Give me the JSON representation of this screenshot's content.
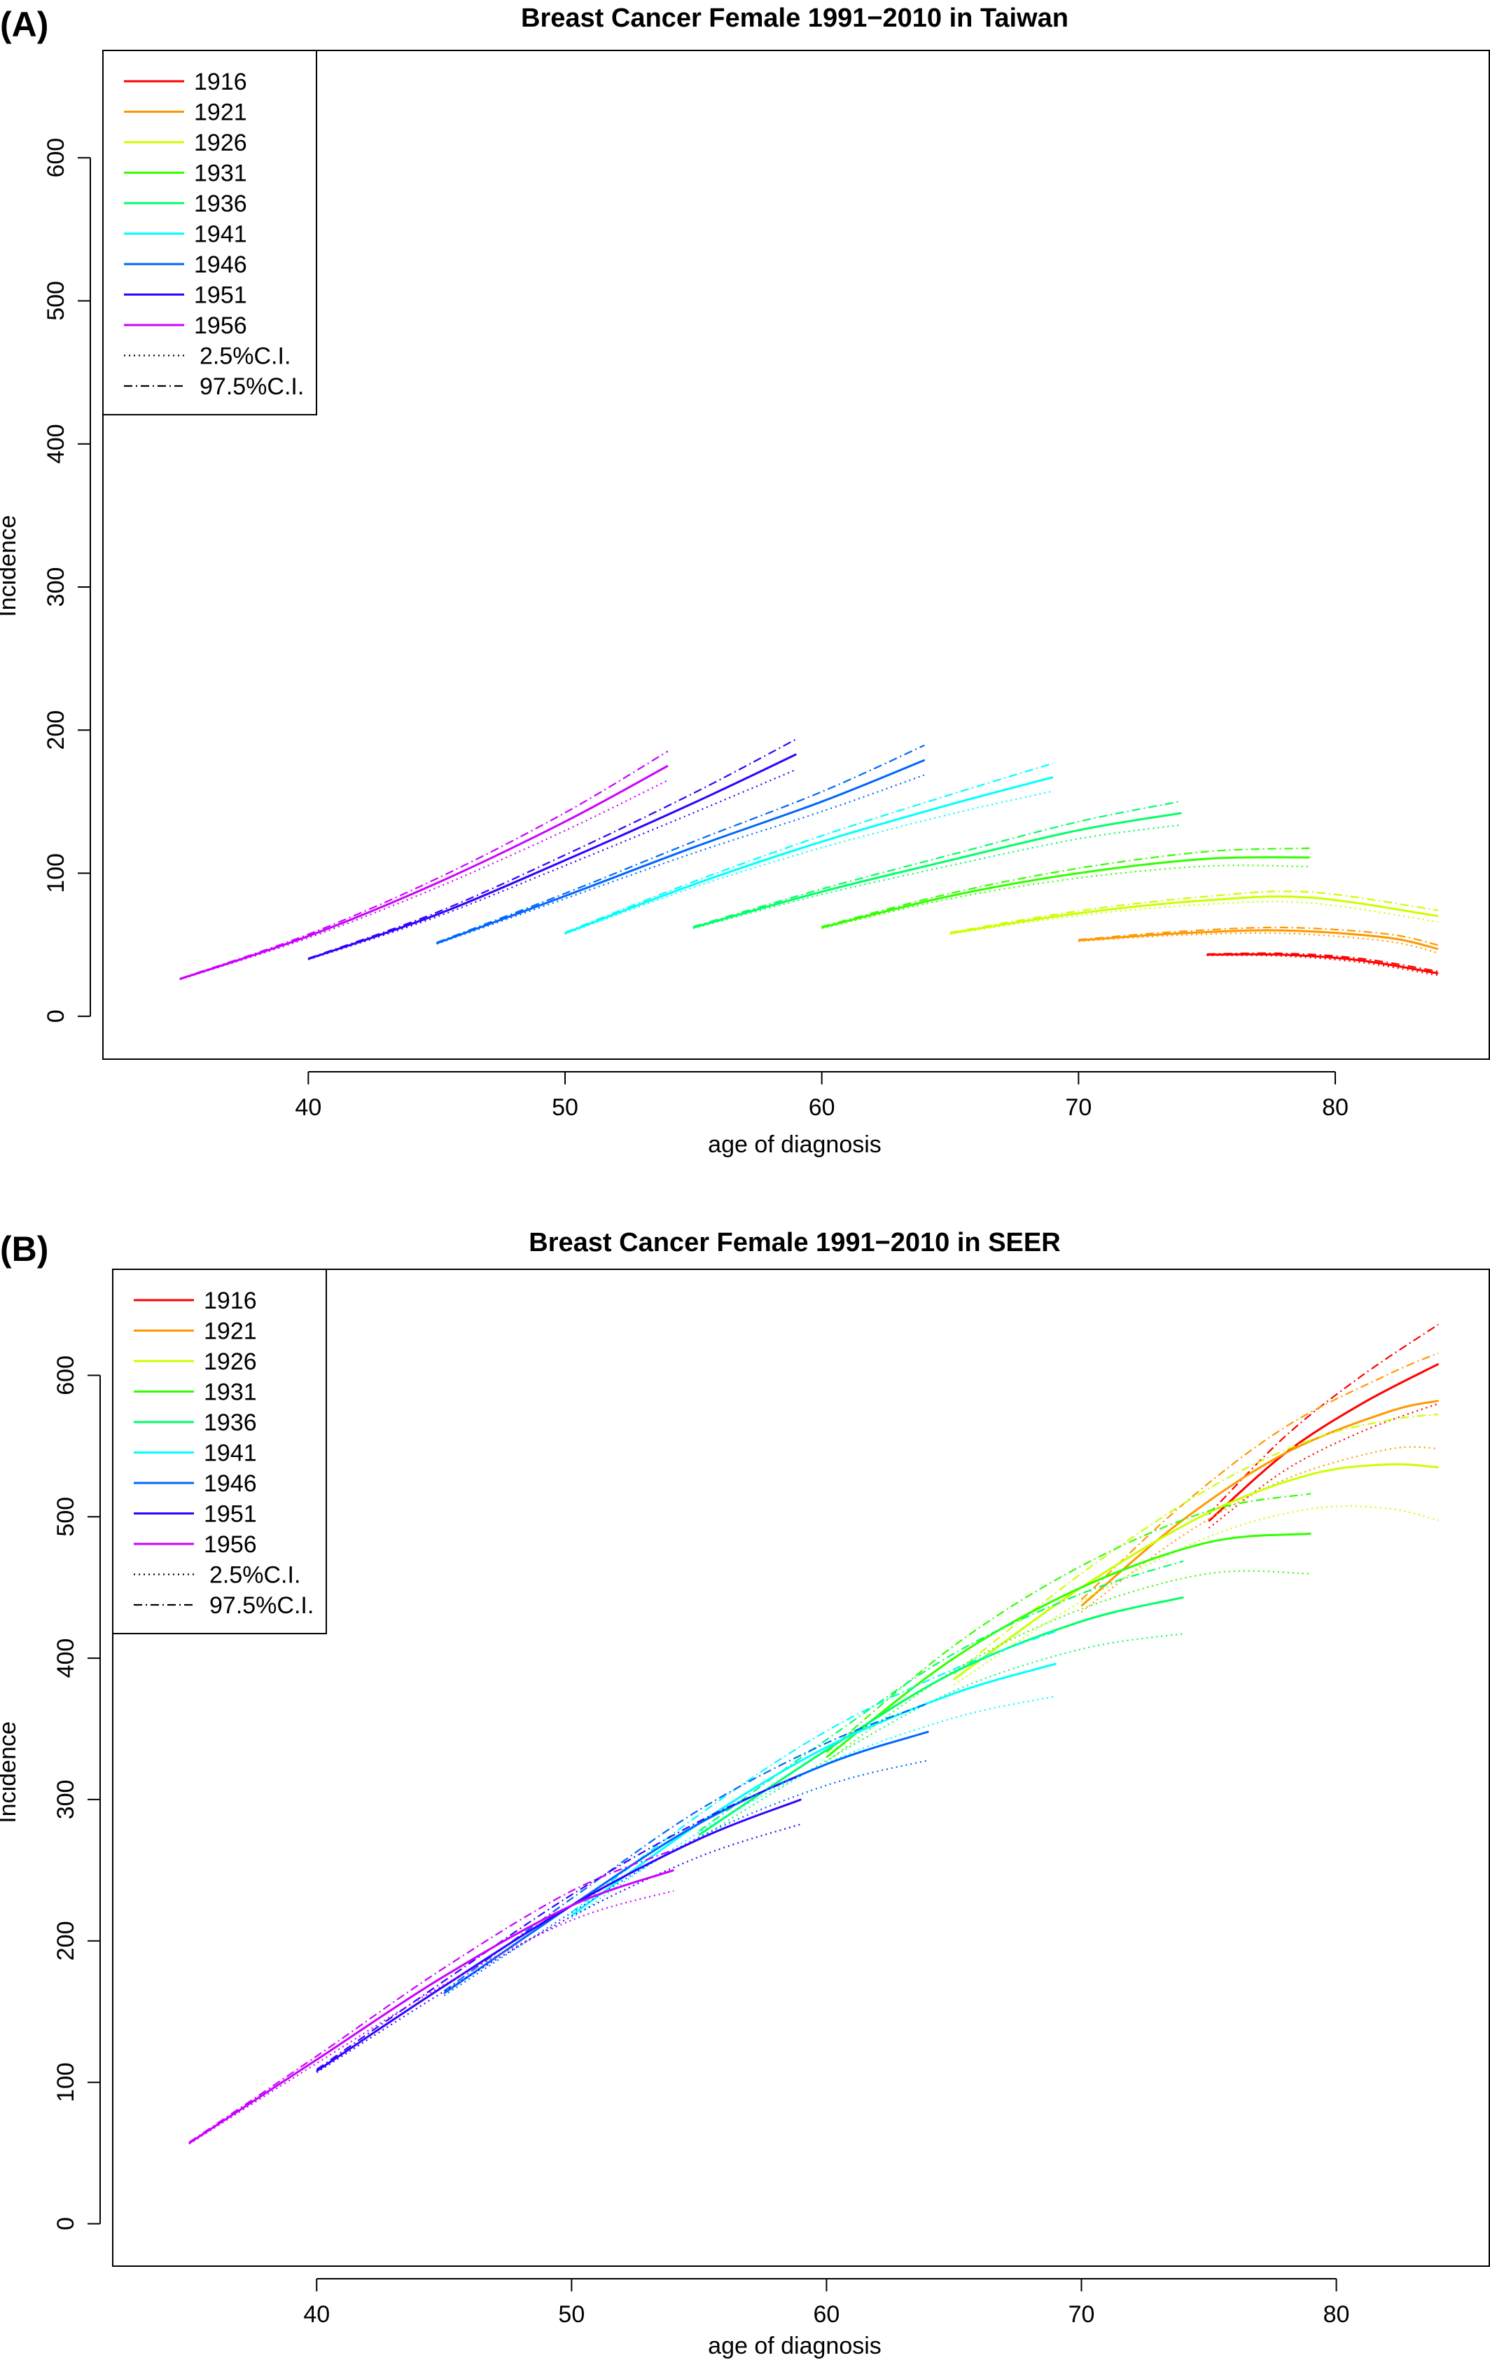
{
  "figure": {
    "panels": [
      {
        "panel_label": "(A)",
        "title": "Breast Cancer Female 1991−2010 in Taiwan",
        "xlabel": "age of diagnosis",
        "ylabel": "Incidence",
        "x_ticks": [
          "40",
          "50",
          "60",
          "70",
          "80"
        ],
        "y_ticks": [
          "0",
          "100",
          "200",
          "300",
          "400",
          "500",
          "600"
        ],
        "legend": {
          "entries": [
            "1916",
            "1921",
            "1926",
            "1931",
            "1936",
            "1941",
            "1946",
            "1951",
            "1956"
          ],
          "ci_entries": [
            "2.5%C.I.",
            "97.5%C.I."
          ]
        }
      },
      {
        "panel_label": "(B)",
        "title": "Breast Cancer Female 1991−2010 in SEER",
        "xlabel": "age of diagnosis",
        "ylabel": "Incidence",
        "x_ticks": [
          "40",
          "50",
          "60",
          "70",
          "80"
        ],
        "y_ticks": [
          "0",
          "100",
          "200",
          "300",
          "400",
          "500",
          "600"
        ],
        "legend": {
          "entries": [
            "1916",
            "1921",
            "1926",
            "1931",
            "1936",
            "1941",
            "1946",
            "1951",
            "1956"
          ],
          "ci_entries": [
            "2.5%C.I.",
            "97.5%C.I."
          ]
        }
      }
    ]
  },
  "chart_data": [
    {
      "type": "line",
      "title": "Breast Cancer Female 1991−2010 in Taiwan",
      "xlabel": "age of diagnosis",
      "ylabel": "Incidence",
      "xlim": [
        32,
        86
      ],
      "ylim": [
        -30,
        675
      ],
      "xticks": [
        40,
        50,
        60,
        70,
        80
      ],
      "yticks": [
        0,
        100,
        200,
        300,
        400,
        500,
        600
      ],
      "grid": false,
      "legend_position": "top-left",
      "series": [
        {
          "name": "1916",
          "color": "#ff0000",
          "x": [
            75,
            78,
            81,
            84
          ],
          "y": [
            43,
            43,
            39,
            30
          ]
        },
        {
          "name": "1921",
          "color": "#ff9900",
          "x": [
            70,
            74,
            78,
            82,
            84
          ],
          "y": [
            53,
            58,
            60,
            55,
            47
          ]
        },
        {
          "name": "1926",
          "color": "#ccff00",
          "x": [
            65,
            70,
            75,
            79,
            84
          ],
          "y": [
            58,
            72,
            81,
            83,
            70
          ]
        },
        {
          "name": "1931",
          "color": "#33ff00",
          "x": [
            60,
            65,
            70,
            75,
            79
          ],
          "y": [
            62,
            84,
            100,
            110,
            111
          ]
        },
        {
          "name": "1936",
          "color": "#00ff66",
          "x": [
            55,
            60,
            65,
            70,
            74
          ],
          "y": [
            62,
            87,
            109,
            130,
            142
          ]
        },
        {
          "name": "1941",
          "color": "#00ffff",
          "x": [
            50,
            55,
            60,
            65,
            69
          ],
          "y": [
            58,
            92,
            122,
            148,
            167
          ]
        },
        {
          "name": "1946",
          "color": "#0066ff",
          "x": [
            45,
            50,
            55,
            60,
            64
          ],
          "y": [
            51,
            84,
            118,
            150,
            179
          ]
        },
        {
          "name": "1951",
          "color": "#3300ff",
          "x": [
            40,
            45,
            50,
            55,
            59
          ],
          "y": [
            40,
            71,
            109,
            149,
            183
          ]
        },
        {
          "name": "1956",
          "color": "#cc00ff",
          "x": [
            35,
            40,
            45,
            50,
            54
          ],
          "y": [
            26,
            56,
            93,
            136,
            175
          ]
        }
      ],
      "ci": {
        "lower": "2.5%C.I.",
        "upper": "97.5%C.I."
      }
    },
    {
      "type": "line",
      "title": "Breast Cancer Female 1991−2010 in SEER",
      "xlabel": "age of diagnosis",
      "ylabel": "Incidence",
      "xlim": [
        32,
        86
      ],
      "ylim": [
        -30,
        675
      ],
      "xticks": [
        40,
        50,
        60,
        70,
        80
      ],
      "yticks": [
        0,
        100,
        200,
        300,
        400,
        500,
        600
      ],
      "grid": false,
      "legend_position": "top-left",
      "series": [
        {
          "name": "1916",
          "color": "#ff0000",
          "x": [
            75,
            78,
            81,
            84
          ],
          "y": [
            497,
            545,
            580,
            608
          ]
        },
        {
          "name": "1921",
          "color": "#ff9900",
          "x": [
            70,
            74,
            78,
            82,
            84
          ],
          "y": [
            437,
            498,
            545,
            574,
            582
          ]
        },
        {
          "name": "1926",
          "color": "#ccff00",
          "x": [
            65,
            70,
            75,
            79,
            82,
            84
          ],
          "y": [
            385,
            450,
            503,
            530,
            537,
            535
          ]
        },
        {
          "name": "1931",
          "color": "#33ff00",
          "x": [
            60,
            65,
            70,
            75,
            79
          ],
          "y": [
            330,
            400,
            450,
            482,
            488
          ]
        },
        {
          "name": "1936",
          "color": "#00ff66",
          "x": [
            55,
            60,
            65,
            70,
            74
          ],
          "y": [
            275,
            335,
            390,
            426,
            443
          ]
        },
        {
          "name": "1941",
          "color": "#00ffff",
          "x": [
            50,
            55,
            60,
            65,
            69
          ],
          "y": [
            218,
            283,
            337,
            375,
            396
          ]
        },
        {
          "name": "1946",
          "color": "#0066ff",
          "x": [
            45,
            50,
            55,
            60,
            64
          ],
          "y": [
            163,
            225,
            283,
            325,
            348
          ]
        },
        {
          "name": "1951",
          "color": "#3300ff",
          "x": [
            40,
            45,
            50,
            55,
            59
          ],
          "y": [
            108,
            168,
            225,
            272,
            300
          ]
        },
        {
          "name": "1956",
          "color": "#cc00ff",
          "x": [
            35,
            40,
            45,
            50,
            54
          ],
          "y": [
            57,
            116,
            175,
            225,
            250
          ]
        }
      ],
      "ci": {
        "lower": "2.5%C.I.",
        "upper": "97.5%C.I."
      }
    }
  ]
}
